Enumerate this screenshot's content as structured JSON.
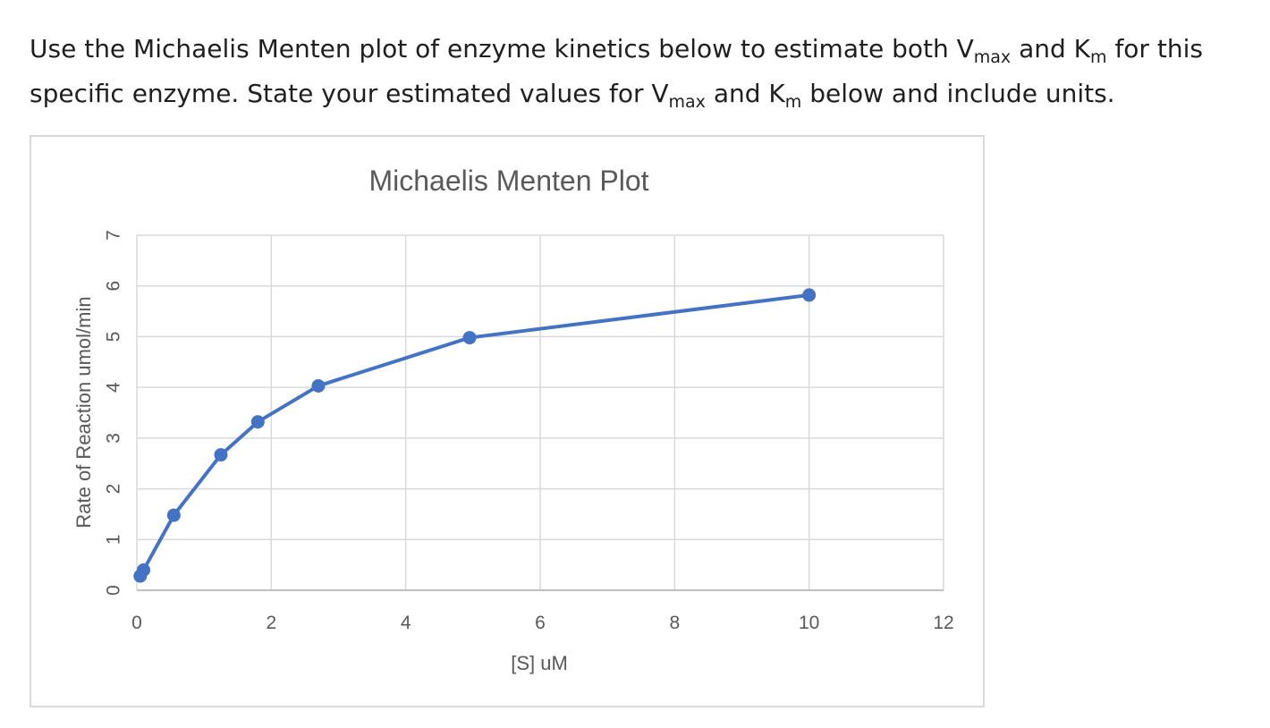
{
  "question": {
    "line1_part1": "Use the Michaelis Menten plot of enzyme kinetics below to estimate both V",
    "line1_sub1": "max",
    "line1_part2": " and K",
    "line1_sub2": "m",
    "line1_part3": " for this",
    "line2_part1": "specific enzyme.  State your estimated values for V",
    "line2_sub1": "max",
    "line2_part2": " and K",
    "line2_sub2": "m",
    "line2_part3": " below and include units."
  },
  "colors": {
    "series": "#4472c4",
    "grid": "#d9d9d9",
    "text": "#595959"
  },
  "chart_data": {
    "type": "scatter",
    "title": "Michaelis Menten Plot",
    "xlabel": "[S] uM",
    "ylabel": "Rate of Reaction umol/min",
    "xlim": [
      0,
      12
    ],
    "ylim": [
      0,
      7
    ],
    "xticks": [
      0,
      2,
      4,
      6,
      8,
      10,
      12
    ],
    "yticks": [
      0,
      1,
      2,
      3,
      4,
      5,
      6,
      7
    ],
    "grid": true,
    "markers": true,
    "lines": true,
    "series": [
      {
        "x": [
          0.05,
          0.1,
          0.55,
          1.25,
          1.8,
          2.7,
          4.95,
          10
        ],
        "y": [
          0.28,
          0.4,
          1.48,
          2.67,
          3.32,
          4.03,
          4.98,
          5.82
        ]
      }
    ]
  }
}
